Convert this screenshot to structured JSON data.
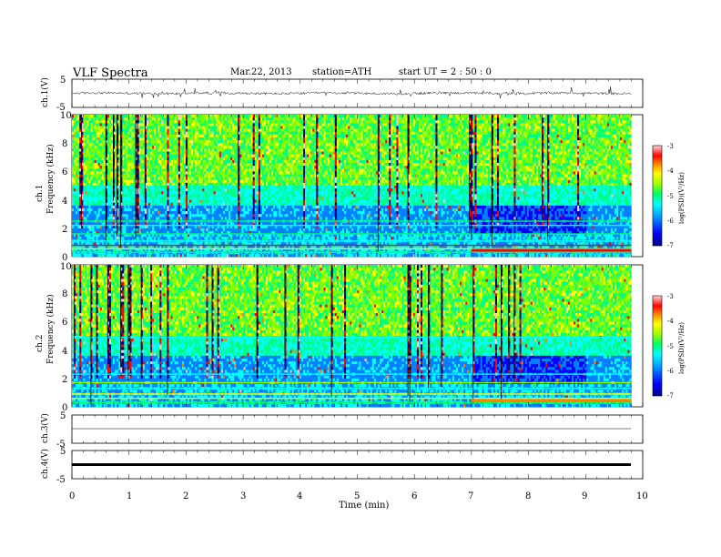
{
  "header": {
    "title": "VLF  Spectra",
    "date": "Mar.22, 2013",
    "station": "station=ATH",
    "start": "start  UT  =   2  : 50 : 0"
  },
  "chart_data": [
    {
      "type": "line",
      "panel": "ch1-waveform",
      "ylabel": "ch.1(V)",
      "ylim": [
        -5,
        5
      ],
      "yticks": [
        "5",
        "-5"
      ],
      "xlim": [
        0,
        10
      ],
      "series_color": "#000000",
      "description_values": "noisy waveform about 0 V, amplitude ~0.5 V with spikes to ~1.5 V"
    },
    {
      "type": "heatmap",
      "panel": "ch1-spectrogram",
      "ylabel_lines": [
        "ch.1",
        "Frequency  (kHz)"
      ],
      "ylim": [
        0,
        10
      ],
      "yticks": [
        "0",
        "2",
        "4",
        "6",
        "8",
        "10"
      ],
      "xlim": [
        0,
        9.8
      ],
      "colorbar": {
        "label": "log(PSD)(V²/Hz)",
        "range": [
          -7,
          -3
        ],
        "ticks": [
          "-3",
          "-4",
          "-5",
          "-6",
          "-7"
        ]
      }
    },
    {
      "type": "heatmap",
      "panel": "ch2-spectrogram",
      "ylabel_lines": [
        "ch.2",
        "Frequency  (kHz)"
      ],
      "ylim": [
        0,
        10
      ],
      "yticks": [
        "0",
        "2",
        "4",
        "6",
        "8",
        "10"
      ],
      "xlim": [
        0,
        9.8
      ],
      "colorbar": {
        "label": "log(PSD)(V²/Hz)",
        "range": [
          -7,
          -3
        ],
        "ticks": [
          "-3",
          "-4",
          "-5",
          "-6",
          "-7"
        ]
      }
    },
    {
      "type": "line",
      "panel": "ch3-waveform",
      "ylabel": "ch.3(V)",
      "ylim": [
        -5,
        5
      ],
      "yticks": [
        "5",
        "-5"
      ],
      "xlim": [
        0,
        10
      ]
    },
    {
      "type": "line",
      "panel": "ch4-waveform",
      "ylabel": "ch.4(V)",
      "ylim": [
        -5,
        5
      ],
      "yticks": [
        "5",
        "-5"
      ],
      "xlim": [
        0,
        10
      ],
      "xlabel": "Time  (min)",
      "xticks": [
        "0",
        "1",
        "2",
        "3",
        "4",
        "5",
        "6",
        "7",
        "8",
        "9",
        "10"
      ]
    }
  ],
  "colormap": [
    "#000080",
    "#0000ff",
    "#0080ff",
    "#00ffff",
    "#00ff80",
    "#80ff00",
    "#ffff00",
    "#ff8000",
    "#ff0000",
    "#ffc8c8"
  ]
}
